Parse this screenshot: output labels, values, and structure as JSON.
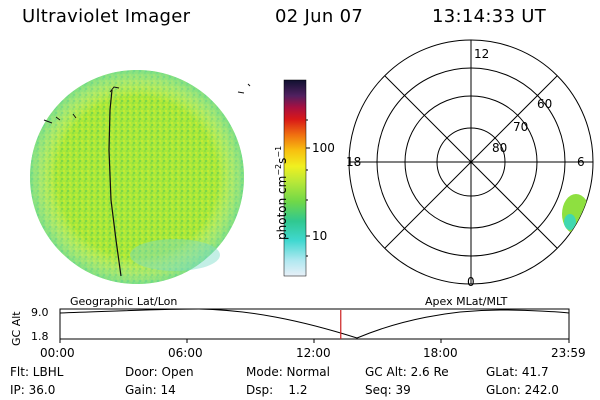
{
  "header": {
    "title": "Ultraviolet Imager",
    "date": "02 Jun 07",
    "time": "13:14:33 UT"
  },
  "colorbar": {
    "unit_label": "photon cm",
    "unit_exp1": "−2",
    "unit_s": "s",
    "unit_exp2": "−1",
    "ticks": [
      "100",
      "10"
    ]
  },
  "polar_plot": {
    "mlt_labels": {
      "top": "12",
      "right": "6",
      "left": "18",
      "bottom": "0"
    },
    "lat_labels": [
      "60",
      "70",
      "80"
    ]
  },
  "timeline": {
    "left_title": "Geographic Lat/Lon",
    "right_title": "Apex MLat/MLT",
    "y_label": "GC Alt",
    "y_ticks": [
      "9.0",
      "1.8"
    ],
    "x_ticks": [
      "00:00",
      "06:00",
      "12:00",
      "18:00",
      "23:59"
    ],
    "current_time_fraction": 0.5516
  },
  "status": {
    "row1": {
      "flt": "Flt: LBHL",
      "door": "Door: Open",
      "mode": "Mode: Normal",
      "gcalt": "GC Alt: 2.6 Re",
      "glat": "GLat:  41.7"
    },
    "row2": {
      "ip": "IP: 36.0",
      "gain": "Gain: 14",
      "dsp": "Dsp:    1.2",
      "seq": "Seq: 39",
      "glon": "GLon: 242.0"
    }
  },
  "colors": {
    "image_fill": "#a8e83a",
    "image_fill_dark": "#74d24a",
    "image_cyan": "#54dcc8",
    "timeline_marker": "#cc2020"
  }
}
